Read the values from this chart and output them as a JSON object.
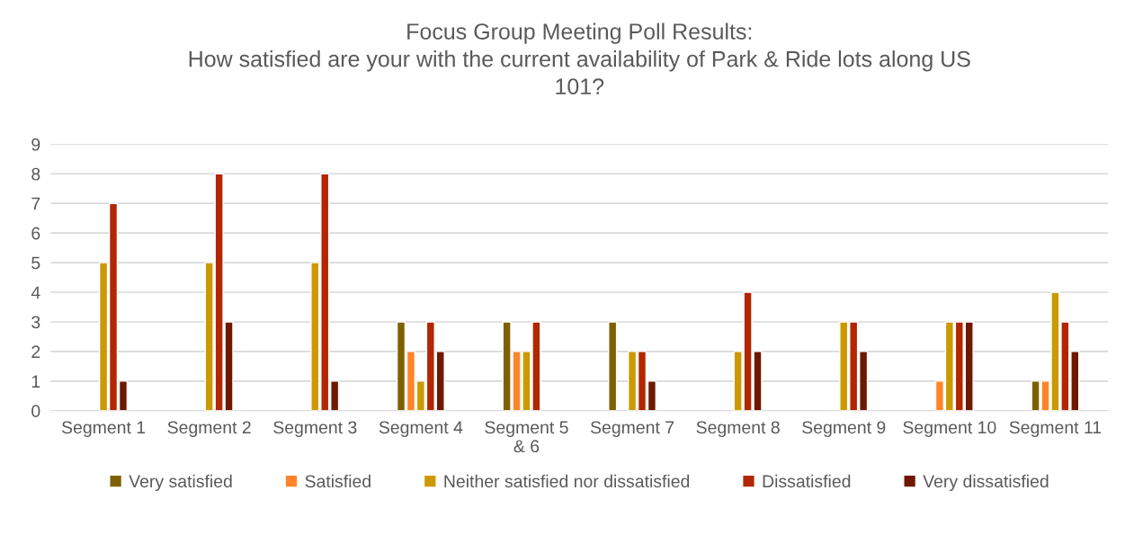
{
  "chart_data": {
    "type": "bar",
    "title": "Focus Group Meeting Poll Results:\nHow satisfied are your with the current availability of Park & Ride lots along US\n101?",
    "categories": [
      "Segment 1",
      "Segment 2",
      "Segment 3",
      "Segment 4",
      "Segment 5\n& 6",
      "Segment 7",
      "Segment 8",
      "Segment 9",
      "Segment 10",
      "Segment 11"
    ],
    "series": [
      {
        "name": "Very satisfied",
        "color": "#7f6000",
        "values": [
          null,
          null,
          null,
          3,
          3,
          3,
          null,
          null,
          null,
          1
        ]
      },
      {
        "name": "Satisfied",
        "color": "#ff8528",
        "values": [
          null,
          null,
          null,
          2,
          2,
          null,
          null,
          null,
          1,
          1
        ]
      },
      {
        "name": "Neither satisfied nor dissatisfied",
        "color": "#cc9900",
        "values": [
          5,
          5,
          5,
          1,
          2,
          2,
          2,
          3,
          3,
          4
        ]
      },
      {
        "name": "Dissatisfied",
        "color": "#b22600",
        "values": [
          7,
          8,
          8,
          3,
          3,
          2,
          4,
          3,
          3,
          3
        ]
      },
      {
        "name": "Very dissatisfied",
        "color": "#6e1800",
        "values": [
          1,
          3,
          1,
          2,
          null,
          1,
          2,
          2,
          3,
          2
        ]
      }
    ],
    "ylim": [
      0,
      9
    ],
    "yticks": [
      0,
      1,
      2,
      3,
      4,
      5,
      6,
      7,
      8,
      9
    ],
    "grid": "y",
    "legend": "bottom"
  }
}
